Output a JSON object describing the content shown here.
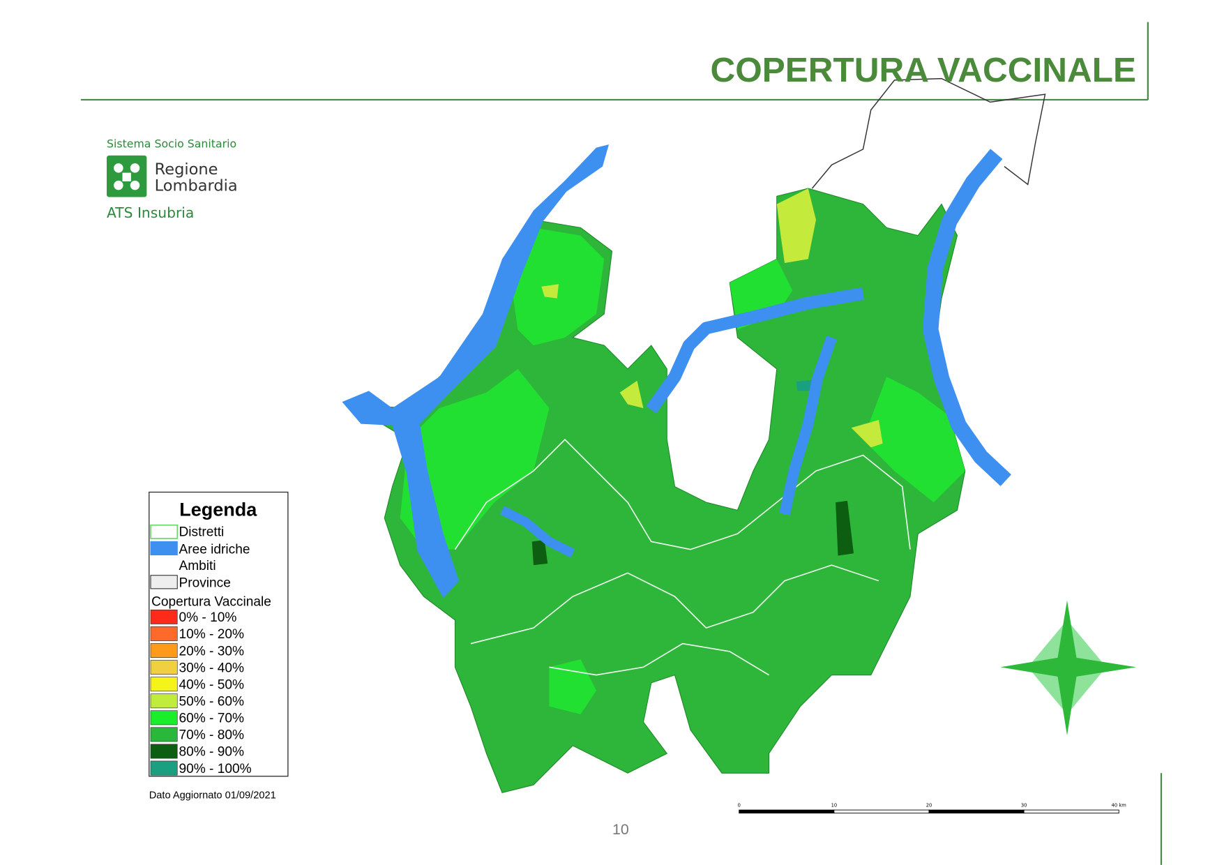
{
  "header": {
    "title": "COPERTURA VACCINALE"
  },
  "logo": {
    "system": "Sistema Socio Sanitario",
    "region_line1": "Regione",
    "region_line2": "Lombardia",
    "agency": "ATS Insubria"
  },
  "legend": {
    "title": "Legenda",
    "layers": [
      "Distretti",
      "Aree idriche",
      "Ambiti",
      "Province"
    ],
    "coverage_title": "Copertura Vaccinale",
    "classes": [
      {
        "label": "0% - 10%",
        "color": "#ff2a1a"
      },
      {
        "label": "10% - 20%",
        "color": "#ff6a2a"
      },
      {
        "label": "20% - 30%",
        "color": "#ff9a1a"
      },
      {
        "label": "30% - 40%",
        "color": "#f0d040"
      },
      {
        "label": "40% - 50%",
        "color": "#f4f41a"
      },
      {
        "label": "50% - 60%",
        "color": "#c0ec3c"
      },
      {
        "label": "60% - 70%",
        "color": "#1aee2a"
      },
      {
        "label": "70% - 80%",
        "color": "#2ab83a"
      },
      {
        "label": "80% - 90%",
        "color": "#0e5e12"
      },
      {
        "label": "90% - 100%",
        "color": "#1aa080"
      }
    ]
  },
  "note": "Dato Aggiornato 01/09/2021",
  "scale_bar": [
    "0",
    "10",
    "20",
    "30",
    "40 km"
  ],
  "page_number": "10"
}
